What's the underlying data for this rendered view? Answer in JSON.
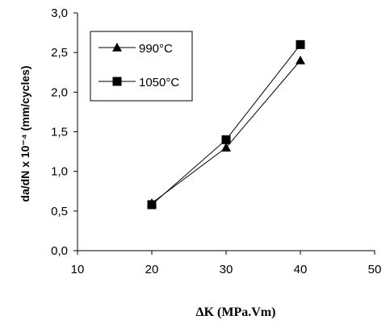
{
  "chart_data": {
    "type": "line",
    "x": [
      20,
      30,
      40
    ],
    "series": [
      {
        "name": "990°C",
        "marker": "triangle",
        "values": [
          0.6,
          1.3,
          2.4
        ],
        "color": "#000000"
      },
      {
        "name": "1050°C",
        "marker": "square",
        "values": [
          0.58,
          1.4,
          2.6
        ],
        "color": "#000000"
      }
    ],
    "xlim": [
      10,
      50
    ],
    "ylim": [
      0,
      3
    ],
    "xticks": [
      "10",
      "20",
      "30",
      "40",
      "50"
    ],
    "yticks": [
      "0,0",
      "0,5",
      "1,0",
      "1,5",
      "2,0",
      "2,5",
      "3,0"
    ],
    "xlabel": "ΔK (MPa.Vm)",
    "ylabel": "da/dN x 10⁻⁴ (mm/cycles)",
    "grid": false,
    "legend_position": "top-left"
  }
}
